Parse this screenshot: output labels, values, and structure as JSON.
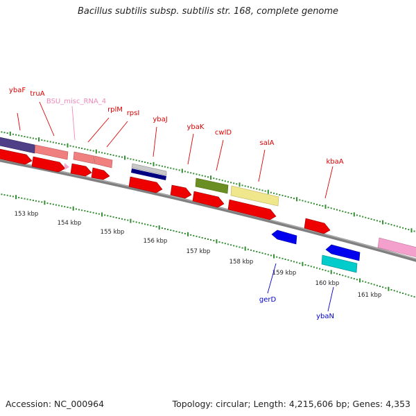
{
  "title": "Bacillus subtilis subsp. subtilis str. 168, complete genome",
  "footer": {
    "accession": "Accession: NC_000964",
    "stats": "Topology: circular; Length: 4,215,606 bp; Genes: 4,353"
  },
  "colors": {
    "backbone": "#808080",
    "dotted_ring": "#2e8b2e",
    "label_red": "#dd0000",
    "label_blue": "#0000cc",
    "label_pink": "#ee88bb"
  },
  "kbp_labels": [
    "153 kbp",
    "154 kbp",
    "155 kbp",
    "156 kbp",
    "157 kbp",
    "158 kbp",
    "159 kbp",
    "160 kbp",
    "161 kbp"
  ],
  "gene_labels": [
    {
      "name": "ybaF",
      "color": "red"
    },
    {
      "name": "truA",
      "color": "red"
    },
    {
      "name": "BSU_misc_RNA_4",
      "color": "pink"
    },
    {
      "name": "rplM",
      "color": "red"
    },
    {
      "name": "rpsI",
      "color": "red"
    },
    {
      "name": "ybaJ",
      "color": "red"
    },
    {
      "name": "ybaK",
      "color": "red"
    },
    {
      "name": "cwlD",
      "color": "red"
    },
    {
      "name": "salA",
      "color": "red"
    },
    {
      "name": "kbaA",
      "color": "red"
    },
    {
      "name": "gerD",
      "color": "blue"
    },
    {
      "name": "ybaN",
      "color": "blue"
    }
  ]
}
